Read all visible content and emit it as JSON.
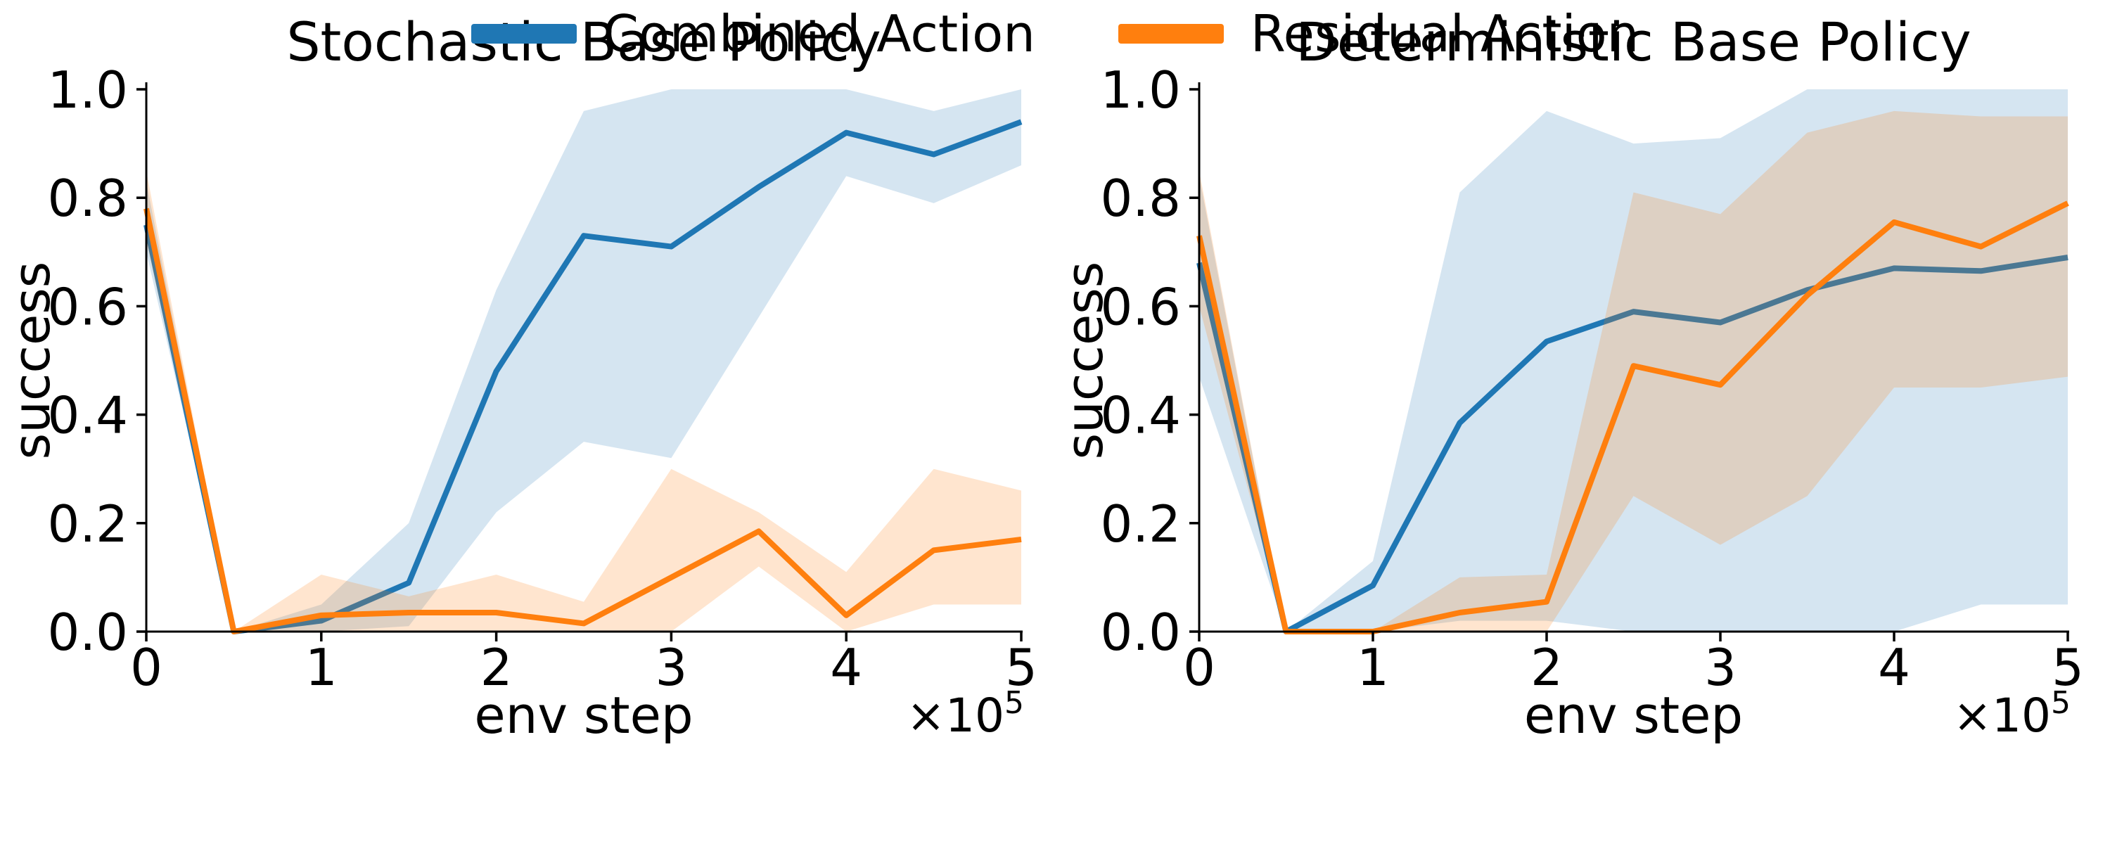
{
  "figure": {
    "background": "#ffffff",
    "axis_color": "#000000"
  },
  "legend": {
    "items": [
      {
        "label": "Combined Action",
        "color": "#1f77b4"
      },
      {
        "label": "Residual Action",
        "color": "#ff7f0e"
      }
    ]
  },
  "chart_data": [
    {
      "type": "line",
      "title": "Stochastic Base Policy",
      "xlabel": "env step",
      "ylabel": "success",
      "x_offset": {
        "base": "×10",
        "exp": "5"
      },
      "xlim": [
        0,
        5
      ],
      "ylim": [
        0,
        1
      ],
      "xticks": [
        "0",
        "1",
        "2",
        "3",
        "4",
        "5"
      ],
      "yticks": [
        "0.0",
        "0.2",
        "0.4",
        "0.6",
        "0.8",
        "1.0"
      ],
      "grid": false,
      "x": [
        0,
        0.5,
        1,
        1.5,
        2,
        2.5,
        3,
        3.5,
        4,
        4.5,
        5
      ],
      "series": [
        {
          "name": "Combined Action",
          "color": "#1f77b4",
          "band_alpha": 0.19,
          "values": [
            0.75,
            0.0,
            0.02,
            0.09,
            0.48,
            0.73,
            0.71,
            0.82,
            0.92,
            0.88,
            0.94
          ],
          "band_lower": [
            0.7,
            0.0,
            0.0,
            0.01,
            0.22,
            0.35,
            0.32,
            0.58,
            0.84,
            0.79,
            0.86
          ],
          "band_upper": [
            0.83,
            0.0,
            0.05,
            0.2,
            0.63,
            0.96,
            1.0,
            1.0,
            1.0,
            0.96,
            1.0
          ]
        },
        {
          "name": "Residual Action",
          "color": "#ff7f0e",
          "band_alpha": 0.2,
          "values": [
            0.78,
            0.0,
            0.03,
            0.035,
            0.035,
            0.015,
            0.1,
            0.185,
            0.03,
            0.15,
            0.17
          ],
          "band_lower": [
            0.72,
            0.0,
            0.0,
            0.0,
            0.0,
            0.0,
            0.0,
            0.12,
            0.0,
            0.05,
            0.05
          ],
          "band_upper": [
            0.85,
            0.0,
            0.105,
            0.065,
            0.105,
            0.055,
            0.3,
            0.22,
            0.11,
            0.3,
            0.26
          ]
        }
      ]
    },
    {
      "type": "line",
      "title": "Deterministic Base Policy",
      "xlabel": "env step",
      "ylabel": "success",
      "x_offset": {
        "base": "×10",
        "exp": "5"
      },
      "xlim": [
        0,
        5
      ],
      "ylim": [
        0,
        1
      ],
      "xticks": [
        "0",
        "1",
        "2",
        "3",
        "4",
        "5"
      ],
      "yticks": [
        "0.0",
        "0.2",
        "0.4",
        "0.6",
        "0.8",
        "1.0"
      ],
      "grid": false,
      "x": [
        0,
        0.5,
        1,
        1.5,
        2,
        2.5,
        3,
        3.5,
        4,
        4.5,
        5
      ],
      "series": [
        {
          "name": "Combined Action",
          "color": "#1f77b4",
          "band_alpha": 0.19,
          "values": [
            0.68,
            0.0,
            0.085,
            0.385,
            0.535,
            0.59,
            0.57,
            0.63,
            0.67,
            0.665,
            0.69
          ],
          "band_lower": [
            0.47,
            0.0,
            0.0,
            0.02,
            0.02,
            0.0,
            0.0,
            0.0,
            0.0,
            0.05,
            0.05
          ],
          "band_upper": [
            0.84,
            0.0,
            0.13,
            0.81,
            0.96,
            0.9,
            0.91,
            1.0,
            1.0,
            1.0,
            1.0
          ]
        },
        {
          "name": "Residual Action",
          "color": "#ff7f0e",
          "band_alpha": 0.2,
          "values": [
            0.73,
            0.0,
            0.0,
            0.035,
            0.055,
            0.49,
            0.455,
            0.62,
            0.755,
            0.71,
            0.79
          ],
          "band_lower": [
            0.6,
            0.0,
            0.0,
            0.0,
            0.0,
            0.25,
            0.16,
            0.25,
            0.45,
            0.45,
            0.47
          ],
          "band_upper": [
            0.85,
            0.0,
            0.0,
            0.1,
            0.105,
            0.81,
            0.77,
            0.92,
            0.96,
            0.95,
            0.95
          ]
        }
      ]
    }
  ]
}
